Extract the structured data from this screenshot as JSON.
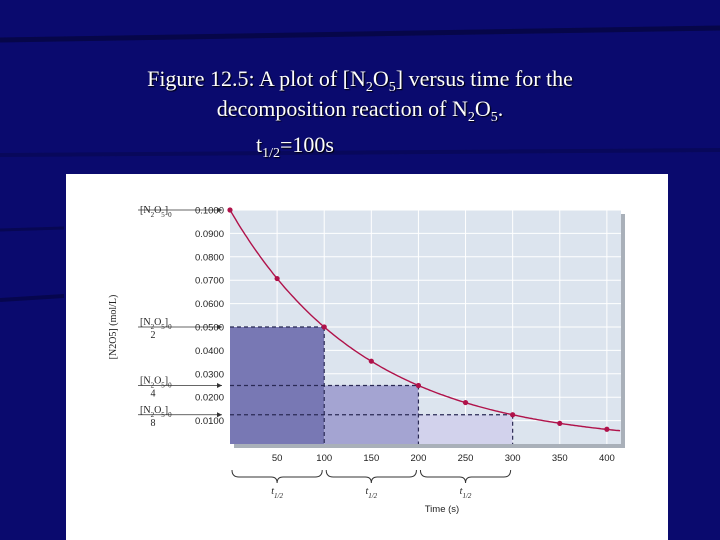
{
  "caption": {
    "line1_pre": "Figure 12.5:  A plot of [N",
    "line1_sub1": "2",
    "line1_mid1": "O",
    "line1_sub2": "5",
    "line1_post": "] versus time for the",
    "line2_pre": "decomposition reaction of N",
    "line2_sub1": "2",
    "line2_mid": "O",
    "line2_sub2": "5",
    "line2_post": ".",
    "line3_pre": "t",
    "line3_sub": "1/2",
    "line3_post": "=100s"
  },
  "colors": {
    "background": "#0a0a6e",
    "curve": "#b0124a",
    "plot_area": "#dce4ee",
    "region_1": "#7878b4",
    "region_2": "#a4a4d2",
    "region_3": "#d2d2ec"
  },
  "chart_data": {
    "type": "line",
    "xlabel": "Time (s)",
    "ylabel": "[N2O5] (mol/L)",
    "xlim": [
      0,
      415
    ],
    "ylim": [
      0,
      0.1
    ],
    "x_ticks": [
      "50",
      "100",
      "150",
      "200",
      "250",
      "300",
      "350",
      "400"
    ],
    "y_ticks": [
      "0.1000",
      "0.0900",
      "0.0800",
      "0.0700",
      "0.0600",
      "0.0500",
      "0.0400",
      "0.0300",
      "0.0200",
      "0.0100"
    ],
    "series": [
      {
        "x": [
          0,
          50,
          100,
          150,
          200,
          250,
          300,
          350,
          400
        ],
        "y": [
          0.1,
          0.0707,
          0.05,
          0.0354,
          0.025,
          0.0177,
          0.0125,
          0.0088,
          0.0063
        ]
      }
    ],
    "annotations": {
      "initial": "[N2O5]0",
      "half_label": "[N2O5]0 / 2",
      "quarter_label": "[N2O5]0 / 4",
      "eighth_label": "[N2O5]0 / 8",
      "half_life_label": "t1/2",
      "half_life_intervals": [
        [
          0,
          100
        ],
        [
          100,
          200
        ],
        [
          200,
          300
        ]
      ]
    },
    "grid": true,
    "legend": "none"
  }
}
